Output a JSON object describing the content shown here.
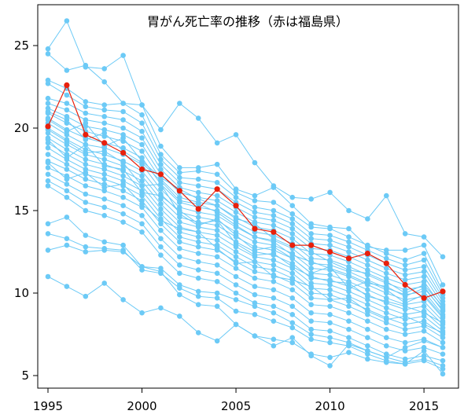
{
  "chart_data": {
    "type": "line",
    "title": "胃がん死亡率の推移（赤は福島県）",
    "xlabel": "",
    "ylabel": "",
    "xlim": [
      1995,
      2016
    ],
    "ylim": [
      5,
      27
    ],
    "xticks": [
      "1995",
      "2000",
      "2005",
      "2010",
      "2015"
    ],
    "yticks": [
      "5",
      "10",
      "15",
      "20",
      "25"
    ],
    "grid": false,
    "x": [
      1995,
      1996,
      1997,
      1998,
      1999,
      2000,
      2001,
      2002,
      2003,
      2004,
      2005,
      2006,
      2007,
      2008,
      2009,
      2010,
      2011,
      2012,
      2013,
      2014,
      2015,
      2016
    ],
    "highlight_color": "#e8200c",
    "other_color": "#6ccaf6",
    "highlight_series": {
      "values": [
        20.1,
        22.6,
        19.6,
        19.1,
        18.5,
        17.5,
        17.2,
        16.2,
        15.1,
        16.3,
        15.3,
        13.9,
        13.7,
        12.9,
        12.9,
        12.5,
        12.1,
        12.4,
        11.8,
        10.5,
        9.7,
        10.1
      ]
    },
    "other_series": [
      {
        "values": [
          24.8,
          26.5,
          23.7,
          23.6,
          24.4,
          21.4,
          19.9,
          21.5,
          20.6,
          19.1,
          19.6,
          17.9,
          16.5,
          15.8,
          15.7,
          16.1,
          15.0,
          14.5,
          15.9,
          13.6,
          13.4,
          12.2
        ]
      },
      {
        "values": [
          24.5,
          23.5,
          23.8,
          22.8,
          21.5,
          21.4,
          18.9,
          17.6,
          17.6,
          17.8,
          16.3,
          15.9,
          16.4,
          15.3,
          14.2,
          14.0,
          13.9,
          12.8,
          12.6,
          12.6,
          12.9,
          10.5
        ]
      },
      {
        "values": [
          22.9,
          22.4,
          21.6,
          21.4,
          21.5,
          20.8,
          18.4,
          17.3,
          17.4,
          17.2,
          16.1,
          15.6,
          15.5,
          14.8,
          14.0,
          13.9,
          13.4,
          12.9,
          12.4,
          12.0,
          12.4,
          10.1
        ]
      },
      {
        "values": [
          22.7,
          22.0,
          21.3,
          21.1,
          21.0,
          20.3,
          18.1,
          17.0,
          16.9,
          16.7,
          15.8,
          15.2,
          15.0,
          14.5,
          13.6,
          13.5,
          13.1,
          12.6,
          12.1,
          11.7,
          12.0,
          9.9
        ]
      },
      {
        "values": [
          21.8,
          21.5,
          20.9,
          20.7,
          20.5,
          19.8,
          17.8,
          16.7,
          16.5,
          16.3,
          15.5,
          14.9,
          14.7,
          14.2,
          13.3,
          13.2,
          12.8,
          12.3,
          11.8,
          11.4,
          11.6,
          9.7
        ]
      },
      {
        "values": [
          21.5,
          21.1,
          20.5,
          20.3,
          20.0,
          19.4,
          17.5,
          16.4,
          16.1,
          15.9,
          15.2,
          14.6,
          14.4,
          13.9,
          13.0,
          12.9,
          12.5,
          12.0,
          11.5,
          11.1,
          11.3,
          9.5
        ]
      },
      {
        "values": [
          21.2,
          20.7,
          20.1,
          19.9,
          19.6,
          19.0,
          17.2,
          16.1,
          15.8,
          15.6,
          14.9,
          14.3,
          14.1,
          13.6,
          12.7,
          12.6,
          12.2,
          11.7,
          11.2,
          10.8,
          11.0,
          9.3
        ]
      },
      {
        "values": [
          20.9,
          20.3,
          19.8,
          19.5,
          19.2,
          18.6,
          16.9,
          15.8,
          15.5,
          15.3,
          14.6,
          14.0,
          13.8,
          13.3,
          12.4,
          12.3,
          11.9,
          11.4,
          10.9,
          10.5,
          10.7,
          9.1
        ]
      },
      {
        "values": [
          20.6,
          19.9,
          19.4,
          19.1,
          18.8,
          18.2,
          16.6,
          15.5,
          15.2,
          15.0,
          14.3,
          13.7,
          13.5,
          13.0,
          12.1,
          12.0,
          11.6,
          11.1,
          10.6,
          10.2,
          10.4,
          8.9
        ]
      },
      {
        "values": [
          20.3,
          19.6,
          19.0,
          18.8,
          18.4,
          17.8,
          16.3,
          15.2,
          14.9,
          14.7,
          14.0,
          13.4,
          13.2,
          12.7,
          11.8,
          11.7,
          11.3,
          10.8,
          10.3,
          9.9,
          10.1,
          8.7
        ]
      },
      {
        "values": [
          20.0,
          19.3,
          18.7,
          18.4,
          18.0,
          17.4,
          16.0,
          14.9,
          14.6,
          14.4,
          13.7,
          13.1,
          12.9,
          12.4,
          11.5,
          11.4,
          11.0,
          10.5,
          10.0,
          9.6,
          9.8,
          8.5
        ]
      },
      {
        "values": [
          19.7,
          19.0,
          18.4,
          18.1,
          17.7,
          17.1,
          15.7,
          14.6,
          14.3,
          14.1,
          13.4,
          12.8,
          12.6,
          12.1,
          11.2,
          11.1,
          10.7,
          10.2,
          9.7,
          9.3,
          9.5,
          8.3
        ]
      },
      {
        "values": [
          19.4,
          18.7,
          18.1,
          17.8,
          17.4,
          16.8,
          15.4,
          14.3,
          14.0,
          13.8,
          13.1,
          12.5,
          12.3,
          11.8,
          10.9,
          10.8,
          10.4,
          9.9,
          9.4,
          9.0,
          9.2,
          8.1
        ]
      },
      {
        "values": [
          19.1,
          18.4,
          17.8,
          17.5,
          17.1,
          16.5,
          15.1,
          14.0,
          13.7,
          13.5,
          12.8,
          12.2,
          12.0,
          11.5,
          10.6,
          10.5,
          10.1,
          9.6,
          9.1,
          8.7,
          8.9,
          7.9
        ]
      },
      {
        "values": [
          18.8,
          18.1,
          17.5,
          17.2,
          16.8,
          16.2,
          14.8,
          13.7,
          13.4,
          13.2,
          12.5,
          11.9,
          11.7,
          11.2,
          10.3,
          10.2,
          9.8,
          9.3,
          8.8,
          8.4,
          8.6,
          7.7
        ]
      },
      {
        "values": [
          18.4,
          17.8,
          17.2,
          16.9,
          16.5,
          15.9,
          14.5,
          13.4,
          13.1,
          12.9,
          12.2,
          11.6,
          11.4,
          10.9,
          10.0,
          9.9,
          9.5,
          9.0,
          8.5,
          8.1,
          8.3,
          7.5
        ]
      },
      {
        "values": [
          18.0,
          17.5,
          16.9,
          16.6,
          16.2,
          15.6,
          14.2,
          13.1,
          12.8,
          12.6,
          11.9,
          11.3,
          11.1,
          10.6,
          9.7,
          9.6,
          9.2,
          8.7,
          8.2,
          7.8,
          8.0,
          7.3
        ]
      },
      {
        "values": [
          17.6,
          17.1,
          16.5,
          16.2,
          15.8,
          15.2,
          13.8,
          12.7,
          12.4,
          12.2,
          11.5,
          10.9,
          10.7,
          10.2,
          9.3,
          9.2,
          8.8,
          8.3,
          7.8,
          7.5,
          7.7,
          7.0
        ]
      },
      {
        "values": [
          17.2,
          16.6,
          16.0,
          15.7,
          15.3,
          14.7,
          13.3,
          12.2,
          11.9,
          11.7,
          11.0,
          10.4,
          10.2,
          9.7,
          8.8,
          8.7,
          8.3,
          7.8,
          7.3,
          7.0,
          7.2,
          6.7
        ]
      },
      {
        "values": [
          16.8,
          16.2,
          15.5,
          15.2,
          14.8,
          14.2,
          12.8,
          11.7,
          11.4,
          11.2,
          10.5,
          9.9,
          9.7,
          9.2,
          8.3,
          8.2,
          7.8,
          7.3,
          6.8,
          6.5,
          6.7,
          6.3
        ]
      },
      {
        "values": [
          16.5,
          15.8,
          15.0,
          14.7,
          14.3,
          13.7,
          12.3,
          11.2,
          10.9,
          10.7,
          10.0,
          9.4,
          9.2,
          8.7,
          7.8,
          7.7,
          7.3,
          6.8,
          6.3,
          6.0,
          6.2,
          5.9
        ]
      },
      {
        "values": [
          14.2,
          14.6,
          13.5,
          13.1,
          12.9,
          11.6,
          11.5,
          10.5,
          10.1,
          10.0,
          9.6,
          9.2,
          8.8,
          8.2,
          7.5,
          7.3,
          7.0,
          6.5,
          6.1,
          5.8,
          6.0,
          5.6
        ]
      },
      {
        "values": [
          13.6,
          13.3,
          12.8,
          12.7,
          12.6,
          11.4,
          11.2,
          10.3,
          9.8,
          9.7,
          8.9,
          8.7,
          8.3,
          7.9,
          7.2,
          7.0,
          6.8,
          6.3,
          5.9,
          5.7,
          5.9,
          5.4
        ]
      },
      {
        "values": [
          12.6,
          12.9,
          12.5,
          12.6,
          12.5,
          11.6,
          11.3,
          9.9,
          9.3,
          9.2,
          8.1,
          7.4,
          7.2,
          7.0,
          6.3,
          6.1,
          6.4,
          6.0,
          5.8,
          5.7,
          6.5,
          5.1
        ]
      },
      {
        "values": [
          11.0,
          10.4,
          9.8,
          10.6,
          9.6,
          8.8,
          9.1,
          8.6,
          7.6,
          7.1,
          8.1,
          7.4,
          6.8,
          7.3,
          6.2,
          5.6,
          6.9,
          6.5,
          6.1,
          6.7,
          7.1,
          6.7
        ]
      },
      {
        "values": [
          19.9,
          19.2,
          18.5,
          18.6,
          17.9,
          16.5,
          16.6,
          14.8,
          14.1,
          14.5,
          13.5,
          12.6,
          12.8,
          12.1,
          11.2,
          11.6,
          10.3,
          10.7,
          10.2,
          9.4,
          9.9,
          8.6
        ]
      },
      {
        "values": [
          17.9,
          16.9,
          17.3,
          16.4,
          16.6,
          15.4,
          14.4,
          13.9,
          13.7,
          12.7,
          11.8,
          11.9,
          11.0,
          10.8,
          10.4,
          9.6,
          9.7,
          8.9,
          8.4,
          8.6,
          8.1,
          7.6
        ]
      },
      {
        "values": [
          19.3,
          18.2,
          19.0,
          17.7,
          17.5,
          16.1,
          15.9,
          15.0,
          14.2,
          14.4,
          13.0,
          12.3,
          12.4,
          11.6,
          11.0,
          10.7,
          10.6,
          9.8,
          9.5,
          9.2,
          8.8,
          8.2
        ]
      },
      {
        "values": [
          21.0,
          20.5,
          19.3,
          19.7,
          18.6,
          17.9,
          16.8,
          15.6,
          15.4,
          14.9,
          14.1,
          13.4,
          13.1,
          12.3,
          11.9,
          11.5,
          11.1,
          10.6,
          10.4,
          9.8,
          10.3,
          9.0
        ]
      },
      {
        "values": [
          20.5,
          19.8,
          20.3,
          18.9,
          19.4,
          18.0,
          17.0,
          16.3,
          15.7,
          15.3,
          14.5,
          14.2,
          13.3,
          12.8,
          12.5,
          11.9,
          11.4,
          11.2,
          10.7,
          10.0,
          10.5,
          9.2
        ]
      }
    ]
  }
}
